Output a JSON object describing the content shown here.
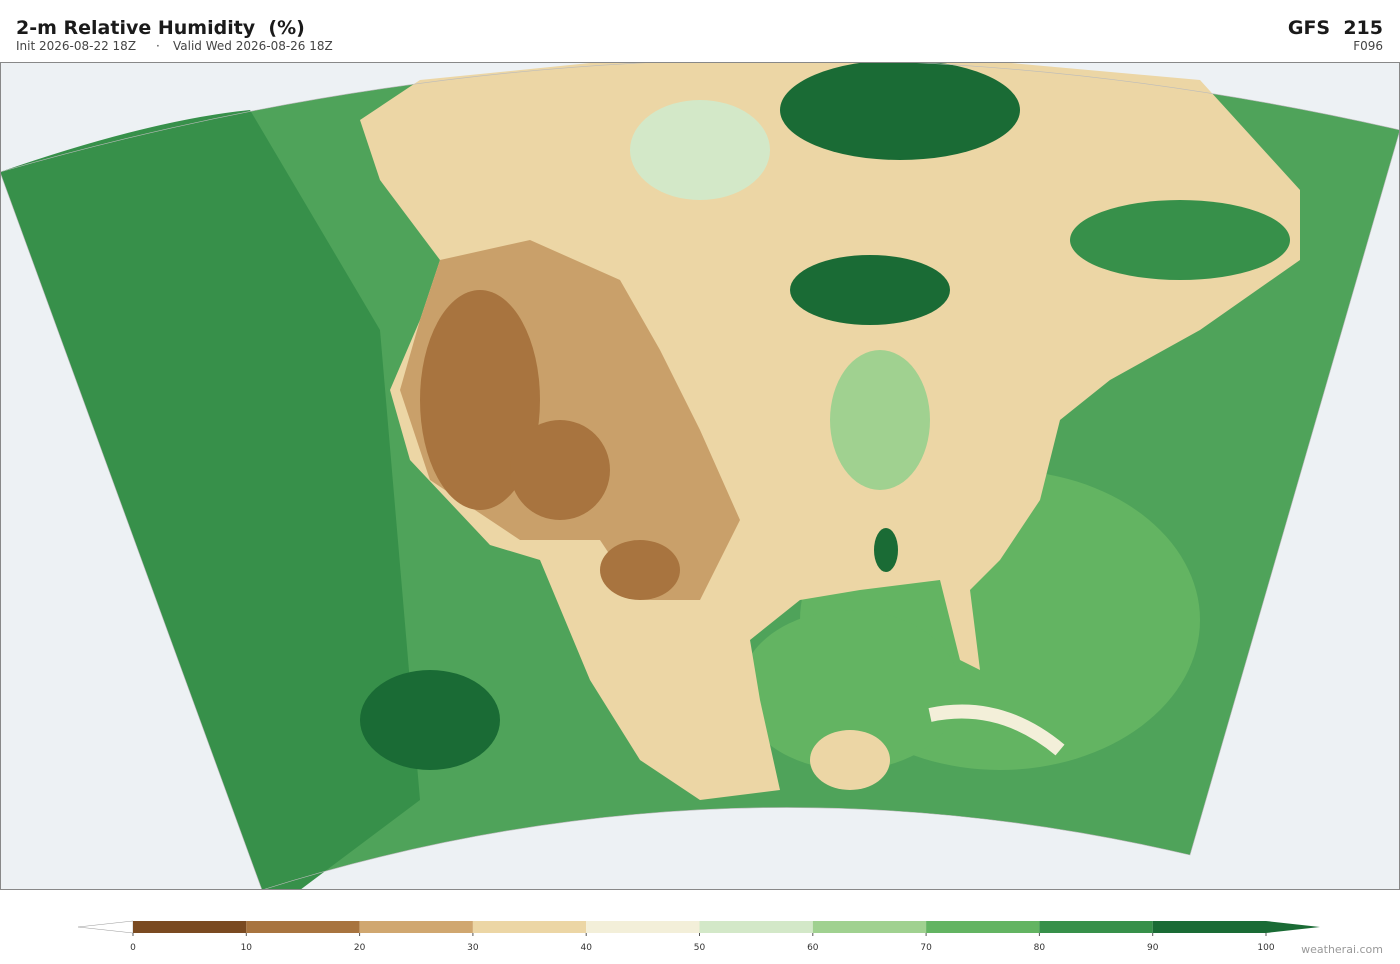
{
  "header": {
    "title": "2-m Relative Humidity  (%)",
    "init": "Init 2026-08-22 18Z",
    "separator": "·",
    "valid": "Valid Wed 2026-08-26 18Z",
    "model": "GFS  215",
    "forecast_hour": "F096"
  },
  "colorbar": {
    "ticks": [
      0,
      10,
      20,
      30,
      40,
      50,
      60,
      70,
      80,
      90,
      100
    ],
    "colors": [
      "#7a4a21",
      "#a8743f",
      "#d0a770",
      "#ecd6a5",
      "#f3efd9",
      "#d3e8c8",
      "#a0d190",
      "#63b462",
      "#37904a",
      "#1a6b35"
    ],
    "under_color": "#ffffff",
    "over_color": "#1a6b35"
  },
  "watermark": "weatherai.com"
}
